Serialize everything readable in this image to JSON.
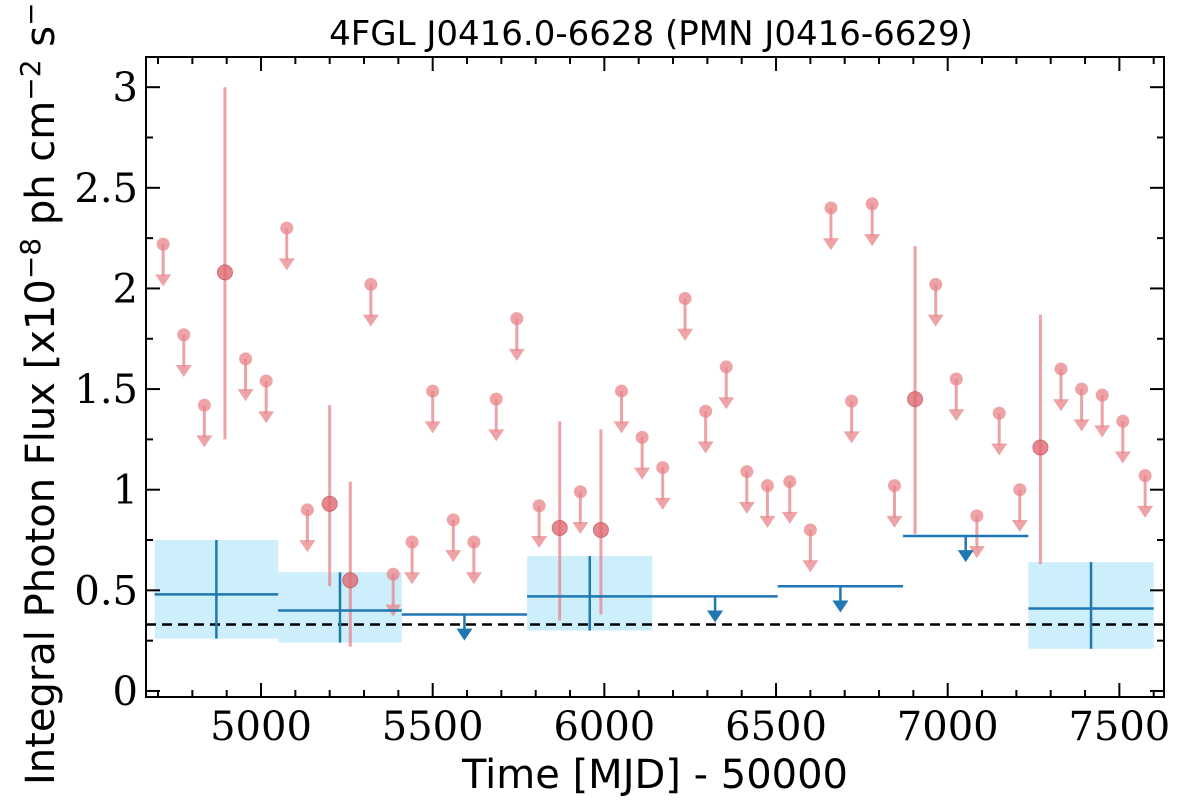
{
  "chart_data": {
    "type": "scatter",
    "title": "4FGL J0416.0-6628 (PMN J0416-6629)",
    "xlabel": "Time [MJD] - 50000",
    "ylabel": "Integral Photon Flux [x10",
    "ylabel_exp1": "−8",
    "ylabel_mid": " ph cm",
    "ylabel_exp2": "−2",
    "ylabel_s": " s",
    "ylabel_exp3": "−1",
    "ylabel_end": "]",
    "xlim": [
      4665,
      7630
    ],
    "ylim": [
      -0.03,
      3.15
    ],
    "xticks": [
      5000,
      5500,
      6000,
      6500,
      7000,
      7500
    ],
    "xtick_labels": [
      "5000",
      "5500",
      "6000",
      "6500",
      "7000",
      "7500"
    ],
    "yticks": [
      0,
      0.5,
      1,
      1.5,
      2,
      2.5,
      3
    ],
    "ytick_labels": [
      "0",
      "0.5",
      "1",
      "1.5",
      "2",
      "2.5",
      "3"
    ],
    "reference_line": 0.33,
    "colors": {
      "short_bins": "#e8848a",
      "long_bins": "#1f77b4",
      "long_bins_error_box": "#cdeefb",
      "reference_line": "#000000"
    },
    "series": [
      {
        "id": "short",
        "points": [
          {
            "x": 4715,
            "y": 2.22,
            "ul": true
          },
          {
            "x": 4775,
            "y": 1.77,
            "ul": true
          },
          {
            "x": 4835,
            "y": 1.42,
            "ul": true
          },
          {
            "x": 4895,
            "y": 2.08,
            "lo": 1.25,
            "hi": 3.0
          },
          {
            "x": 4955,
            "y": 1.65,
            "ul": true
          },
          {
            "x": 5015,
            "y": 1.54,
            "ul": true
          },
          {
            "x": 5135,
            "y": 0.9,
            "ul": true
          },
          {
            "x": 5075,
            "y": 2.3,
            "ul": true
          },
          {
            "x": 5200,
            "y": 0.93,
            "lo": 0.52,
            "hi": 1.42
          },
          {
            "x": 5260,
            "y": 0.55,
            "lo": 0.22,
            "hi": 1.04
          },
          {
            "x": 5320,
            "y": 2.02,
            "ul": true
          },
          {
            "x": 5385,
            "y": 0.58,
            "ul": true
          },
          {
            "x": 5440,
            "y": 0.74,
            "ul": true
          },
          {
            "x": 5500,
            "y": 1.49,
            "ul": true
          },
          {
            "x": 5560,
            "y": 0.85,
            "ul": true
          },
          {
            "x": 5620,
            "y": 0.74,
            "ul": true
          },
          {
            "x": 5685,
            "y": 1.45,
            "ul": true
          },
          {
            "x": 5745,
            "y": 1.85,
            "ul": true
          },
          {
            "x": 5810,
            "y": 0.92,
            "ul": true
          },
          {
            "x": 5870,
            "y": 0.81,
            "lo": 0.35,
            "hi": 1.34
          },
          {
            "x": 5930,
            "y": 0.99,
            "ul": true
          },
          {
            "x": 5990,
            "y": 0.8,
            "lo": 0.38,
            "hi": 1.3
          },
          {
            "x": 6050,
            "y": 1.49,
            "ul": true
          },
          {
            "x": 6110,
            "y": 1.26,
            "ul": true
          },
          {
            "x": 6170,
            "y": 1.11,
            "ul": true
          },
          {
            "x": 6235,
            "y": 1.95,
            "ul": true
          },
          {
            "x": 6295,
            "y": 1.39,
            "ul": true
          },
          {
            "x": 6355,
            "y": 1.61,
            "ul": true
          },
          {
            "x": 6415,
            "y": 1.09,
            "ul": true
          },
          {
            "x": 6475,
            "y": 1.02,
            "ul": true
          },
          {
            "x": 6540,
            "y": 1.04,
            "ul": true
          },
          {
            "x": 6600,
            "y": 0.8,
            "ul": true
          },
          {
            "x": 6660,
            "y": 2.4,
            "ul": true
          },
          {
            "x": 6720,
            "y": 1.44,
            "ul": true
          },
          {
            "x": 6780,
            "y": 2.42,
            "ul": true
          },
          {
            "x": 6845,
            "y": 1.02,
            "ul": true
          },
          {
            "x": 6905,
            "y": 1.45,
            "lo": 0.78,
            "hi": 2.21
          },
          {
            "x": 6965,
            "y": 2.02,
            "ul": true
          },
          {
            "x": 7025,
            "y": 1.55,
            "ul": true
          },
          {
            "x": 7085,
            "y": 0.87,
            "ul": true
          },
          {
            "x": 7150,
            "y": 1.38,
            "ul": true
          },
          {
            "x": 7210,
            "y": 1.0,
            "ul": true
          },
          {
            "x": 7270,
            "y": 1.21,
            "lo": 0.63,
            "hi": 1.87
          },
          {
            "x": 7330,
            "y": 1.6,
            "ul": true
          },
          {
            "x": 7390,
            "y": 1.5,
            "ul": true
          },
          {
            "x": 7450,
            "y": 1.47,
            "ul": true
          },
          {
            "x": 7510,
            "y": 1.34,
            "ul": true
          },
          {
            "x": 7575,
            "y": 1.07,
            "ul": true
          }
        ]
      },
      {
        "id": "long",
        "bins": [
          {
            "x0": 4690,
            "x1": 5050,
            "y": 0.48,
            "lo": 0.26,
            "hi": 0.75
          },
          {
            "x0": 5050,
            "x1": 5410,
            "y": 0.4,
            "lo": 0.24,
            "hi": 0.59
          },
          {
            "x0": 5410,
            "x1": 5775,
            "y": 0.38,
            "ul": true
          },
          {
            "x0": 5775,
            "x1": 6140,
            "y": 0.47,
            "lo": 0.3,
            "hi": 0.67
          },
          {
            "x0": 6140,
            "x1": 6505,
            "y": 0.47,
            "ul": true
          },
          {
            "x0": 6505,
            "x1": 6870,
            "y": 0.52,
            "ul": true
          },
          {
            "x0": 6870,
            "x1": 7235,
            "y": 0.77,
            "ul": true
          },
          {
            "x0": 7235,
            "x1": 7600,
            "y": 0.41,
            "lo": 0.21,
            "hi": 0.64
          }
        ]
      }
    ]
  }
}
